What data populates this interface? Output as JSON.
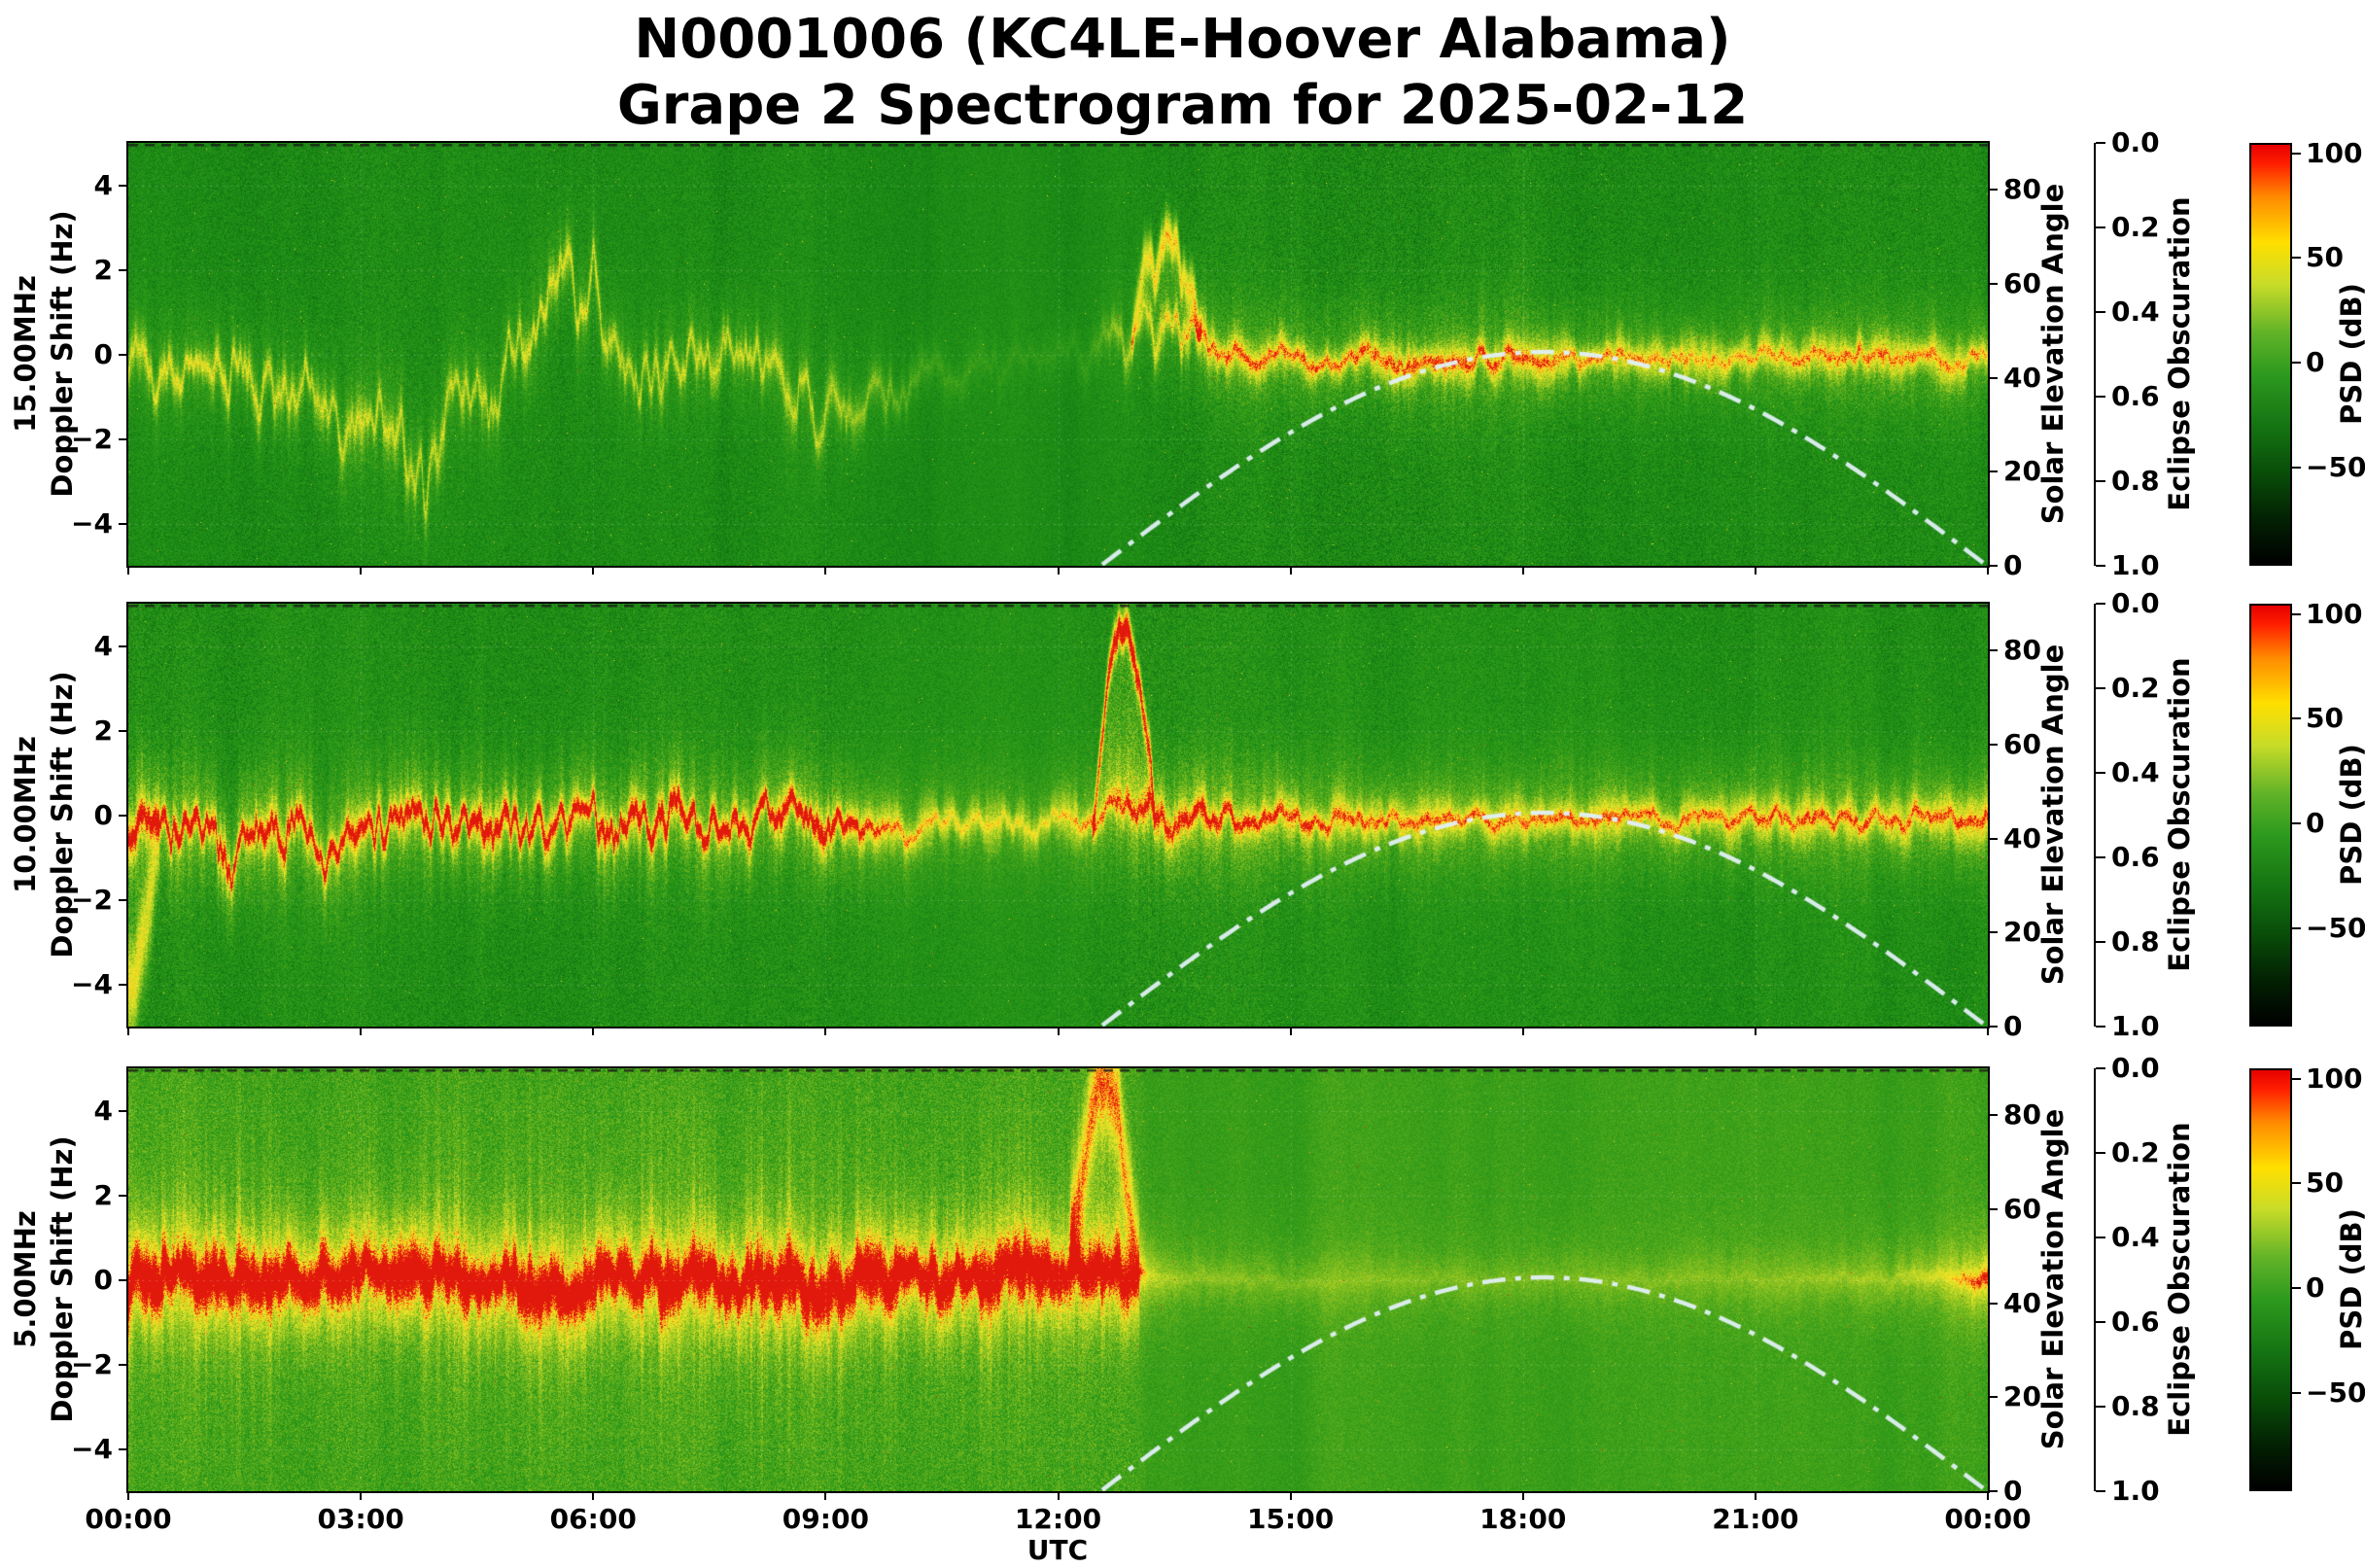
{
  "chart_data": {
    "type": "heatmap",
    "title": "N0001006 (KC4LE-Hoover Alabama)",
    "subtitle": "Grape 2 Spectrogram for 2025-02-12",
    "x_axis": {
      "label": "UTC",
      "ticks": [
        {
          "h": 0,
          "label": "00:00"
        },
        {
          "h": 3,
          "label": "03:00"
        },
        {
          "h": 6,
          "label": "06:00"
        },
        {
          "h": 9,
          "label": "09:00"
        },
        {
          "h": 12,
          "label": "12:00"
        },
        {
          "h": 15,
          "label": "15:00"
        },
        {
          "h": 18,
          "label": "18:00"
        },
        {
          "h": 21,
          "label": "21:00"
        },
        {
          "h": 24,
          "label": "00:00"
        }
      ]
    },
    "doppler_axis": {
      "label": "Doppler Shift (Hz)",
      "lim": [
        -5,
        5
      ],
      "ticks": [
        {
          "v": -4,
          "label": "−4"
        },
        {
          "v": -2,
          "label": "−2"
        },
        {
          "v": 0,
          "label": "0"
        },
        {
          "v": 2,
          "label": "2"
        },
        {
          "v": 4,
          "label": "4"
        }
      ]
    },
    "solar_axis": {
      "label": "Solar Elevation Angle",
      "lim": [
        0,
        90
      ],
      "ticks": [
        {
          "v": 0,
          "label": "0"
        },
        {
          "v": 20,
          "label": "20"
        },
        {
          "v": 40,
          "label": "40"
        },
        {
          "v": 60,
          "label": "60"
        },
        {
          "v": 80,
          "label": "80"
        }
      ]
    },
    "eclipse_axis": {
      "label": "Eclipse Obscuration",
      "lim": [
        0,
        1
      ],
      "inverted": true,
      "ticks": [
        {
          "v": 0.0,
          "label": "0.0"
        },
        {
          "v": 0.2,
          "label": "0.2"
        },
        {
          "v": 0.4,
          "label": "0.4"
        },
        {
          "v": 0.6,
          "label": "0.6"
        },
        {
          "v": 0.8,
          "label": "0.8"
        },
        {
          "v": 1.0,
          "label": "1.0"
        }
      ]
    },
    "colorbar": {
      "label": "PSD (dB)",
      "lim": [
        105,
        -97
      ],
      "ticks": [
        {
          "v": 100,
          "label": "100"
        },
        {
          "v": 50,
          "label": "50"
        },
        {
          "v": 0,
          "label": "0"
        },
        {
          "v": -50,
          "label": "−50"
        }
      ],
      "stops": [
        {
          "v": 105,
          "color": "#e60000"
        },
        {
          "v": 96,
          "color": "#ff1e00"
        },
        {
          "v": 80,
          "color": "#ff8a00"
        },
        {
          "v": 58,
          "color": "#ffdf00"
        },
        {
          "v": 38,
          "color": "#c8dc28"
        },
        {
          "v": 15,
          "color": "#63b428"
        },
        {
          "v": -5,
          "color": "#2e9a1e"
        },
        {
          "v": -30,
          "color": "#157513"
        },
        {
          "v": -55,
          "color": "#084a08"
        },
        {
          "v": -75,
          "color": "#032203"
        },
        {
          "v": -97,
          "color": "#000000"
        }
      ]
    },
    "solar_curve": {
      "style": "dash-dot",
      "color": "#e2f0f5",
      "sunrise_utc": 12.55,
      "solar_noon_utc": 18.27,
      "peak_elevation_deg": 45.5
    },
    "eclipse_curve": {
      "value": 0,
      "style": "dashed"
    },
    "panels": [
      {
        "freq_label": "15.00MHz",
        "render": {
          "seed": 11,
          "bg": 0.3,
          "coreW": 0.26,
          "lineK": 0.2,
          "bandK": 0.1,
          "plumeScale": 0.95,
          "plumeK": 0.34
        },
        "profile": [
          [
            0,
            0.55,
            0.18,
            -0.4,
            0,
            0.8
          ],
          [
            1,
            0.6,
            0.28,
            -0.2,
            0,
            0.9
          ],
          [
            2,
            0.5,
            0.3,
            -0.8,
            0,
            1.1
          ],
          [
            3,
            0.45,
            0.38,
            -1.8,
            0,
            1.3
          ],
          [
            3.8,
            0.45,
            0.35,
            -2.2,
            0,
            1.3
          ],
          [
            4.6,
            0.45,
            0.25,
            -0.8,
            0,
            1.2
          ],
          [
            5.4,
            0.55,
            0.32,
            1.2,
            0,
            1.5
          ],
          [
            5.9,
            0.55,
            0.3,
            1.6,
            0,
            1.6
          ],
          [
            6.5,
            0.45,
            0.22,
            -0.3,
            0,
            1.1
          ],
          [
            7.4,
            0.5,
            0.28,
            0.3,
            0,
            1.0
          ],
          [
            8.3,
            0.5,
            0.25,
            -0.5,
            0,
            1.0
          ],
          [
            9,
            0.45,
            0.2,
            -1.6,
            0,
            1.0
          ],
          [
            9.6,
            0.35,
            0.12,
            -1.0,
            0,
            0.8
          ],
          [
            10.4,
            0.16,
            0.05,
            -0.4,
            0,
            0.6
          ],
          [
            11.4,
            0.08,
            0.03,
            -0.2,
            0,
            0.5
          ],
          [
            12.4,
            0.12,
            0.04,
            0,
            0,
            0.5
          ],
          [
            13,
            0.5,
            0.15,
            0.5,
            0,
            0.8
          ],
          [
            13.5,
            0.7,
            0.3,
            0.9,
            0,
            1.0
          ],
          [
            14,
            0.8,
            0.45,
            0.1,
            0,
            0.35
          ],
          [
            15.2,
            0.8,
            0.5,
            -0.1,
            0,
            0.3
          ],
          [
            16.5,
            0.85,
            0.55,
            -0.1,
            0,
            0.3
          ],
          [
            18,
            0.8,
            0.48,
            -0.15,
            0,
            0.28
          ],
          [
            19.5,
            0.75,
            0.36,
            -0.1,
            0,
            0.26
          ],
          [
            21,
            0.72,
            0.3,
            -0.05,
            0,
            0.26
          ],
          [
            22.2,
            0.78,
            0.45,
            0,
            0,
            0.3
          ],
          [
            23.2,
            0.75,
            0.4,
            -0.1,
            0,
            0.3
          ],
          [
            24,
            0.7,
            0.34,
            -0.2,
            0,
            0.3
          ]
        ],
        "events": [
          {
            "t": 13.4,
            "dt": 0.45,
            "top": 2.0,
            "amp": 0.5,
            "w": 0.35
          }
        ]
      },
      {
        "freq_label": "10.00MHz",
        "render": {
          "seed": 22,
          "bg": 0.32,
          "coreW": 0.28,
          "lineK": 0.26,
          "bandK": 0.16,
          "plumeScale": 1.25,
          "plumeK": 0.4
        },
        "profile": [
          [
            0,
            0.9,
            0.6,
            -0.3,
            0.3,
            0.8
          ],
          [
            0.8,
            0.85,
            0.5,
            -0.4,
            0.4,
            0.9
          ],
          [
            1.5,
            0.8,
            0.45,
            -0.7,
            0.3,
            1.1
          ],
          [
            2.5,
            0.8,
            0.35,
            -0.4,
            0.3,
            0.9
          ],
          [
            3.5,
            0.82,
            0.38,
            -0.3,
            0.35,
            0.8
          ],
          [
            4.5,
            0.85,
            0.42,
            -0.1,
            0.5,
            0.8
          ],
          [
            5.5,
            0.8,
            0.38,
            -0.3,
            0.3,
            0.8
          ],
          [
            7,
            0.85,
            0.45,
            0.1,
            0.5,
            0.9
          ],
          [
            8,
            0.8,
            0.4,
            -0.3,
            0.35,
            0.9
          ],
          [
            9,
            0.85,
            0.42,
            -0.2,
            0.5,
            0.8
          ],
          [
            9.8,
            0.65,
            0.2,
            -0.35,
            0.1,
            0.5
          ],
          [
            10.8,
            0.55,
            0.15,
            -0.3,
            0,
            0.45
          ],
          [
            11.8,
            0.5,
            0.12,
            -0.3,
            0,
            0.4
          ],
          [
            12.5,
            0.65,
            0.3,
            -0.1,
            0,
            0.5
          ],
          [
            13.1,
            0.85,
            0.55,
            0.2,
            0,
            0.7
          ],
          [
            13.8,
            0.82,
            0.5,
            0,
            0,
            0.45
          ],
          [
            14.6,
            0.78,
            0.42,
            -0.1,
            0,
            0.35
          ],
          [
            15.5,
            0.72,
            0.3,
            -0.1,
            0,
            0.3
          ],
          [
            17,
            0.7,
            0.26,
            -0.1,
            0,
            0.25
          ],
          [
            18.5,
            0.7,
            0.28,
            -0.1,
            0,
            0.25
          ],
          [
            20,
            0.7,
            0.26,
            -0.1,
            0,
            0.25
          ],
          [
            21.5,
            0.72,
            0.32,
            -0.1,
            0,
            0.3
          ],
          [
            23,
            0.72,
            0.3,
            -0.1,
            0,
            0.3
          ],
          [
            24,
            0.75,
            0.35,
            -0.1,
            0,
            0.3
          ]
        ],
        "events": [
          {
            "t": 12.85,
            "dt": 0.4,
            "top": 4.2,
            "amp": 0.8,
            "w": 0.3
          },
          {
            "t": 0.05,
            "dt": 0.35,
            "top": -3.5,
            "amp": 0.45,
            "w": 0.8
          }
        ]
      },
      {
        "freq_label": "5.00MHz",
        "render": {
          "seed": 33,
          "bg": 0.41,
          "coreW": 0.34,
          "lineK": 0.18,
          "bandK": 0.3,
          "plumeScale": 1.8,
          "plumeK": 0.52
        },
        "profile": [
          [
            0,
            1,
            0.6,
            0,
            0.75,
            0.5
          ],
          [
            1,
            1,
            0.7,
            0.05,
            0.85,
            0.55
          ],
          [
            2,
            1,
            0.6,
            -0.05,
            0.8,
            0.5
          ],
          [
            3,
            1,
            0.68,
            0.05,
            0.82,
            0.55
          ],
          [
            4,
            1,
            0.6,
            0,
            0.8,
            0.5
          ],
          [
            5,
            1,
            0.72,
            -0.15,
            0.85,
            0.6
          ],
          [
            5.8,
            1,
            0.85,
            -0.1,
            0.88,
            0.65
          ],
          [
            6.8,
            1,
            0.7,
            0.1,
            0.82,
            0.55
          ],
          [
            7.8,
            1,
            0.85,
            0.05,
            0.88,
            0.6
          ],
          [
            8.8,
            1,
            0.75,
            0,
            0.85,
            0.55
          ],
          [
            9.8,
            1,
            0.65,
            0.05,
            0.8,
            0.5
          ],
          [
            10.8,
            1,
            0.65,
            0,
            0.8,
            0.5
          ],
          [
            11.8,
            1,
            0.75,
            0.05,
            0.85,
            0.55
          ],
          [
            12.5,
            1,
            0.9,
            0.15,
            0.88,
            0.6
          ],
          [
            12.9,
            0.85,
            0.55,
            0.1,
            0.5,
            0.5
          ],
          [
            13.15,
            0.3,
            0.1,
            0,
            0.05,
            0.3
          ],
          [
            13.6,
            0.2,
            0.04,
            0,
            0,
            0.2
          ],
          [
            15,
            0.17,
            0.02,
            0,
            0,
            0.15
          ],
          [
            18,
            0.15,
            0.02,
            0,
            0,
            0.15
          ],
          [
            21,
            0.17,
            0.02,
            0,
            0,
            0.15
          ],
          [
            22.8,
            0.22,
            0.03,
            0,
            0.05,
            0.15
          ],
          [
            23.5,
            0.3,
            0.06,
            0,
            0.15,
            0.2
          ],
          [
            24,
            0.5,
            0.15,
            0,
            0.4,
            0.25
          ]
        ],
        "events": [
          {
            "t": 12.6,
            "dt": 0.45,
            "top": 4.6,
            "amp": 0.5,
            "w": 0.9
          }
        ]
      }
    ]
  }
}
